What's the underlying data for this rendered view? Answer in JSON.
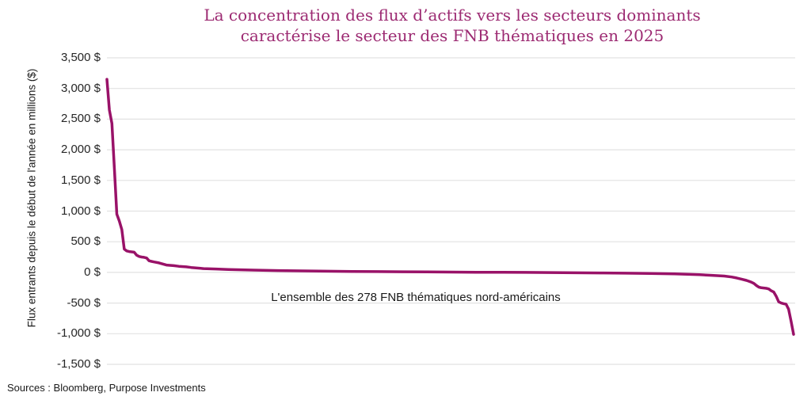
{
  "title": {
    "line1": "La concentration des flux d’actifs vers les secteurs dominants",
    "line2": "caractérise le secteur des FNB thématiques en 2025"
  },
  "annotation": "L'ensemble des 278 FNB thématiques nord-américains",
  "source": "Sources : Bloomberg, Purpose Investments",
  "colors": {
    "title": "#9c2a72",
    "line": "#991268",
    "gridline": "#e2e2e2",
    "tick_text": "#262626"
  },
  "chart_data": {
    "type": "line",
    "title": "La concentration des flux d’actifs vers les secteurs dominants caractérise le secteur des FNB thématiques en 2025",
    "xlabel": "",
    "ylabel": "Flux entrants depuis le début de l'année en millions ($)",
    "x_description": "278 FNB thématiques nord-américains classés par flux décroissants",
    "x_count": 278,
    "ylim": [
      -1500,
      3500
    ],
    "grid": "horizontal",
    "legend": "none",
    "yticks": [
      {
        "value": 3500,
        "label": "3,500 $"
      },
      {
        "value": 3000,
        "label": "3,000 $"
      },
      {
        "value": 2500,
        "label": "2,500 $"
      },
      {
        "value": 2000,
        "label": "2,000 $"
      },
      {
        "value": 1500,
        "label": "1,500 $"
      },
      {
        "value": 1000,
        "label": "1,000 $"
      },
      {
        "value": 500,
        "label": "500 $"
      },
      {
        "value": 0,
        "label": "0 $"
      },
      {
        "value": -500,
        "label": "-500 $"
      },
      {
        "value": -1000,
        "label": "-1,000 $"
      },
      {
        "value": -1500,
        "label": "-1,500 $"
      }
    ],
    "series": [
      {
        "name": "Flux entrants depuis le début de l'année (millions $)",
        "points": [
          [
            1,
            3150
          ],
          [
            2,
            2650
          ],
          [
            3,
            2430
          ],
          [
            4,
            1700
          ],
          [
            5,
            950
          ],
          [
            6,
            840
          ],
          [
            7,
            700
          ],
          [
            8,
            380
          ],
          [
            9,
            350
          ],
          [
            10,
            340
          ],
          [
            11,
            335
          ],
          [
            12,
            330
          ],
          [
            13,
            280
          ],
          [
            14,
            260
          ],
          [
            15,
            250
          ],
          [
            16,
            245
          ],
          [
            17,
            235
          ],
          [
            18,
            190
          ],
          [
            19,
            180
          ],
          [
            20,
            170
          ],
          [
            22,
            155
          ],
          [
            25,
            120
          ],
          [
            28,
            110
          ],
          [
            30,
            100
          ],
          [
            33,
            90
          ],
          [
            35,
            80
          ],
          [
            40,
            62
          ],
          [
            45,
            55
          ],
          [
            50,
            48
          ],
          [
            55,
            42
          ],
          [
            60,
            38
          ],
          [
            70,
            30
          ],
          [
            80,
            25
          ],
          [
            90,
            20
          ],
          [
            100,
            16
          ],
          [
            110,
            13
          ],
          [
            120,
            10
          ],
          [
            130,
            8
          ],
          [
            140,
            5
          ],
          [
            150,
            3
          ],
          [
            160,
            1
          ],
          [
            170,
            0
          ],
          [
            180,
            -3
          ],
          [
            190,
            -6
          ],
          [
            200,
            -9
          ],
          [
            210,
            -13
          ],
          [
            220,
            -18
          ],
          [
            230,
            -25
          ],
          [
            235,
            -30
          ],
          [
            240,
            -38
          ],
          [
            245,
            -48
          ],
          [
            250,
            -60
          ],
          [
            253,
            -75
          ],
          [
            255,
            -90
          ],
          [
            257,
            -110
          ],
          [
            259,
            -130
          ],
          [
            260,
            -145
          ],
          [
            261,
            -160
          ],
          [
            262,
            -180
          ],
          [
            263,
            -215
          ],
          [
            264,
            -240
          ],
          [
            265,
            -250
          ],
          [
            266,
            -255
          ],
          [
            267,
            -260
          ],
          [
            268,
            -270
          ],
          [
            269,
            -300
          ],
          [
            270,
            -320
          ],
          [
            271,
            -390
          ],
          [
            272,
            -480
          ],
          [
            273,
            -500
          ],
          [
            274,
            -510
          ],
          [
            275,
            -520
          ],
          [
            276,
            -600
          ],
          [
            277,
            -800
          ],
          [
            278,
            -1010
          ]
        ]
      }
    ]
  }
}
